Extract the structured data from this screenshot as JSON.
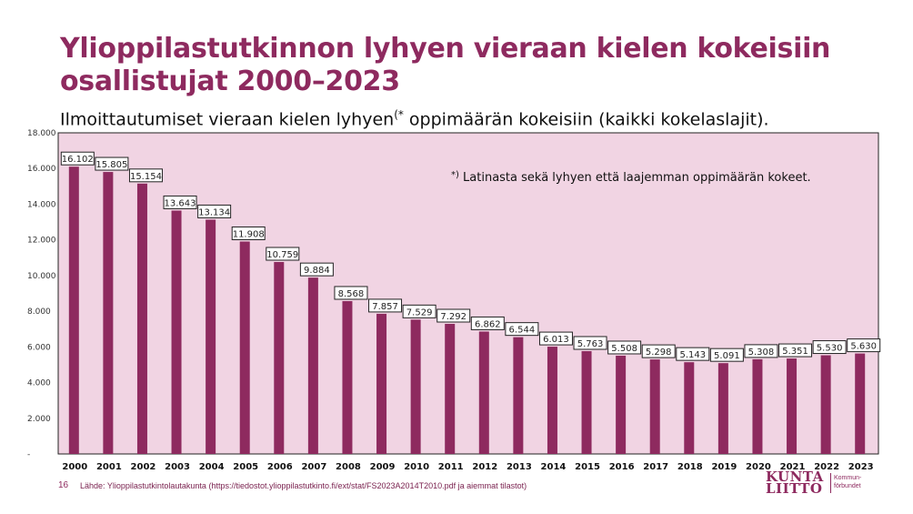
{
  "title": "Ylioppilastutkinnon lyhyen vieraan kielen kokeisiin osallistujat 2000–2023",
  "subtitle_main": "Ilmoittautumiset vieraan kielen lyhyen",
  "subtitle_sup": "(*",
  "subtitle_rest": " oppimäärän kokeisiin (kaikki kokelaslajit).",
  "footnote_mark": "*)",
  "footnote_text": " Latinasta sekä lyhyen että laajemman oppimäärän kokeet.",
  "page_number": "16",
  "source": "Lähde: Ylioppilastutkintolautakunta (https://tiedostot.ylioppilastutkinto.fi/ext/stat/FS2023A2014T2010.pdf  ja aiemmat tilastot)",
  "logo": {
    "line1": "KUNTA",
    "line2": "LIITTO",
    "sub1": "Kommun-",
    "sub2": "förbundet"
  },
  "colors": {
    "bar": "#8e2a5f",
    "plot_bg": "#f1d4e3",
    "title": "#8e2a5f"
  },
  "chart_data": {
    "type": "bar",
    "categories": [
      "2000",
      "2001",
      "2002",
      "2003",
      "2004",
      "2005",
      "2006",
      "2007",
      "2008",
      "2009",
      "2010",
      "2011",
      "2012",
      "2013",
      "2014",
      "2015",
      "2016",
      "2017",
      "2018",
      "2019",
      "2020",
      "2021",
      "2022",
      "2023"
    ],
    "values": [
      16102,
      15805,
      15154,
      13643,
      13134,
      11908,
      10759,
      9884,
      8568,
      7857,
      7529,
      7292,
      6862,
      6544,
      6013,
      5763,
      5508,
      5298,
      5143,
      5091,
      5308,
      5351,
      5530,
      5630
    ],
    "data_labels": [
      "16.102",
      "15.805",
      "15.154",
      "13.643",
      "13.134",
      "11.908",
      "10.759",
      "9.884",
      "8.568",
      "7.857",
      "7.529",
      "7.292",
      "6.862",
      "6.544",
      "6.013",
      "5.763",
      "5.508",
      "5.298",
      "5.143",
      "5.091",
      "5.308",
      "5.351",
      "5.530",
      "5.630"
    ],
    "yticks": [
      0,
      2000,
      4000,
      6000,
      8000,
      10000,
      12000,
      14000,
      16000,
      18000
    ],
    "ytick_labels": [
      "-",
      "2.000",
      "4.000",
      "6.000",
      "8.000",
      "10.000",
      "12.000",
      "14.000",
      "16.000",
      "18.000"
    ],
    "ylim": [
      0,
      18000
    ],
    "grid": false
  }
}
